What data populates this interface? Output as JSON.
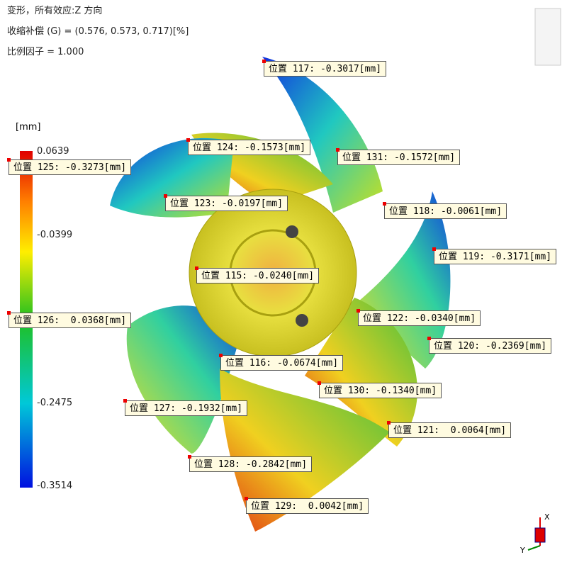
{
  "header": {
    "lines": [
      "变形，所有效应:Z 方向",
      "收缩补偿 (G) = (0.576, 0.573, 0.717)[%]",
      "比例因子 = 1.000"
    ]
  },
  "legend": {
    "unit": "[mm]",
    "ticks": [
      "0.0639",
      "-0.0399",
      "-0.2475",
      "-0.3514"
    ]
  },
  "probes": [
    "位置 117: -0.3017[mm]",
    "位置 124: -0.1573[mm]",
    "位置 131: -0.1572[mm]",
    "位置 125: -0.3273[mm]",
    "位置 123: -0.0197[mm]",
    "位置 118: -0.0061[mm]",
    "位置 119: -0.3171[mm]",
    "位置 115: -0.0240[mm]",
    "位置 126:  0.0368[mm]",
    "位置 122: -0.0340[mm]",
    "位置 120: -0.2369[mm]",
    "位置 116: -0.0674[mm]",
    "位置 130: -0.1340[mm]",
    "位置 127: -0.1932[mm]",
    "位置 121:  0.0064[mm]",
    "位置 128: -0.2842[mm]",
    "位置 129:  0.0042[mm]"
  ],
  "triad": {
    "x": "X",
    "y": "Y"
  }
}
